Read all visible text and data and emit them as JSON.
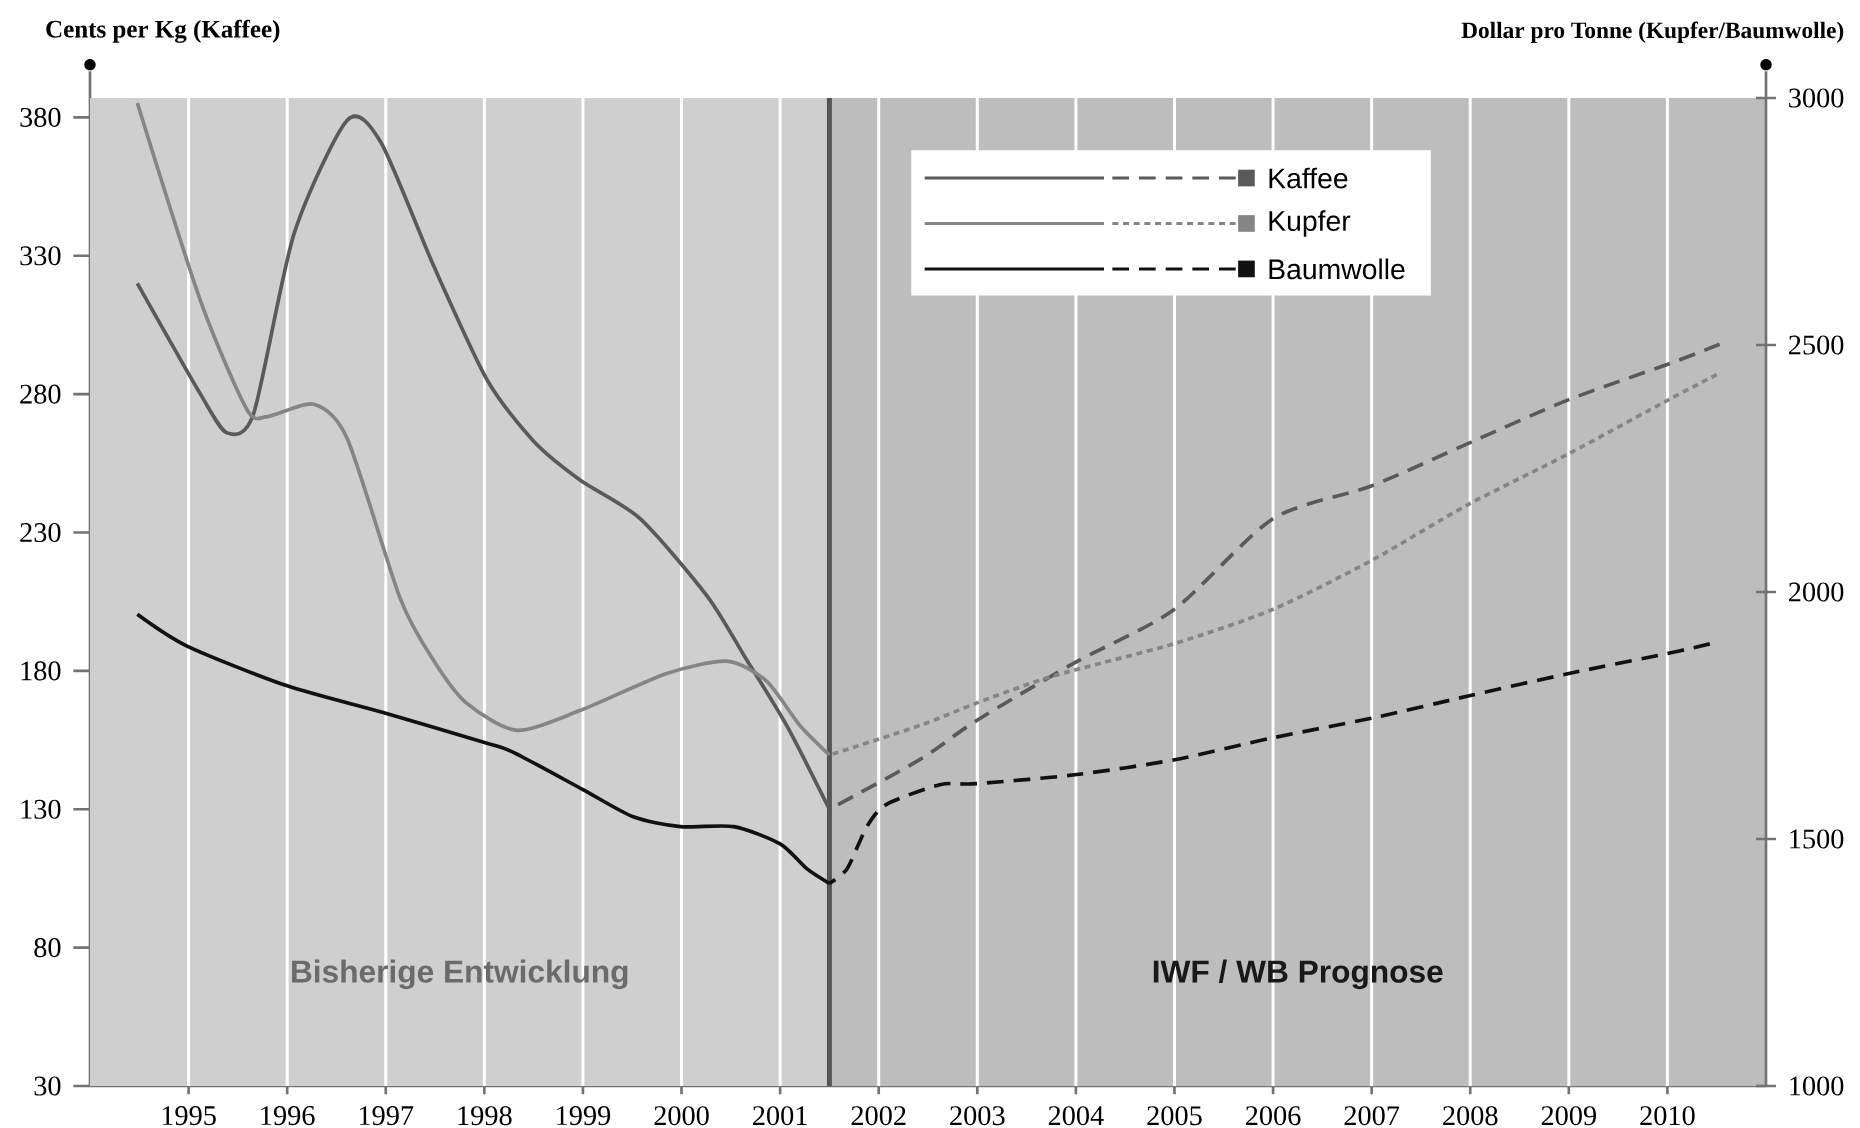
{
  "chart_data": {
    "type": "line",
    "ylabel": "Cents per Kg (Kaffee)",
    "y2label": "Dollar pro Tonne (Kupfer/Baumwolle)",
    "xlim": [
      1994,
      2011
    ],
    "xticks": [
      1995,
      1996,
      1997,
      1998,
      1999,
      2000,
      2001,
      2002,
      2003,
      2004,
      2005,
      2006,
      2007,
      2008,
      2009,
      2010
    ],
    "ylim": [
      30,
      387
    ],
    "yticks": [
      30,
      80,
      130,
      180,
      230,
      280,
      330,
      380
    ],
    "y2lim": [
      1000,
      3000
    ],
    "y2ticks": [
      1000,
      1500,
      2000,
      2500,
      3000
    ],
    "grid": "x",
    "legend": "top",
    "series": [
      {
        "name": "Kaffee",
        "color": "#5a5a5a",
        "line_style": "solid",
        "x": [
          1994.48,
          1995.12,
          1995.39,
          1995.66,
          1996.07,
          1996.61,
          1996.95,
          1997.49,
          1998.03,
          1998.5,
          1998.97,
          1999.58,
          2000.26,
          2000.66,
          2001.07,
          2001.5
        ],
        "values": [
          320,
          280,
          266,
          273,
          338,
          379,
          371,
          326,
          285,
          263,
          249,
          235,
          207,
          184,
          160,
          130
        ]
      },
      {
        "color": "#5a5a5a",
        "line_style": "dashed",
        "x": [
          2001.5,
          2002.42,
          2002.99,
          2003.99,
          2004.99,
          2006.0,
          2007.01,
          2008.03,
          2009.0,
          2010.02,
          2010.53
        ],
        "values": [
          130,
          148,
          162,
          183,
          202,
          235,
          247,
          263,
          278,
          291,
          298
        ]
      },
      {
        "name": "Kupfer",
        "color": "#858585",
        "line_style": "solid",
        "axis": "y2",
        "x": [
          1994.48,
          1995.12,
          1995.59,
          1995.8,
          1996.27,
          1996.61,
          1997.15,
          1997.49,
          1997.82,
          1998.33,
          1998.97,
          1999.85,
          2000.46,
          2000.86,
          2001.2,
          2001.5
        ],
        "values": [
          2990,
          2590,
          2370,
          2355,
          2380,
          2310,
          1985,
          1860,
          1775,
          1720,
          1760,
          1835,
          1860,
          1820,
          1730,
          1670
        ]
      },
      {
        "color": "#858585",
        "line_style": "dotted",
        "axis": "y2",
        "x": [
          2001.5,
          2002.42,
          2002.99,
          2003.77,
          2004.99,
          2006.0,
          2007.01,
          2007.96,
          2009.0,
          2010.02,
          2010.5
        ],
        "values": [
          1670,
          1730,
          1775,
          1830,
          1895,
          1965,
          2065,
          2175,
          2280,
          2390,
          2440
        ]
      },
      {
        "name": "Baumwolle",
        "color": "#111111",
        "line_style": "solid",
        "axis": "y2",
        "x": [
          1994.48,
          1994.99,
          1996.0,
          1996.99,
          1998.01,
          1998.3,
          1999.0,
          1999.51,
          1999.99,
          2000.53,
          2001.0,
          2001.27,
          2001.5
        ],
        "values": [
          1955,
          1890,
          1810,
          1755,
          1695,
          1675,
          1600,
          1545,
          1525,
          1525,
          1490,
          1440,
          1410
        ]
      },
      {
        "color": "#111111",
        "line_style": "dashed",
        "axis": "y2",
        "x": [
          2001.5,
          2001.68,
          2001.88,
          2002.08,
          2002.62,
          2002.99,
          2003.99,
          2004.99,
          2006.0,
          2007.01,
          2007.99,
          2009.0,
          2009.99,
          2010.43
        ],
        "values": [
          1410,
          1440,
          1525,
          1570,
          1610,
          1612,
          1630,
          1660,
          1705,
          1745,
          1790,
          1835,
          1875,
          1895
        ]
      }
    ],
    "bands": [
      {
        "axis": "x",
        "from": 1994,
        "to": 2001.5,
        "label": "Bisherige Entwicklung",
        "color": "#cfcfcf"
      },
      {
        "axis": "x",
        "from": 2001.5,
        "to": 2011,
        "label": "IWF / WB Prognose",
        "color": "#bdbdbd"
      }
    ],
    "ref_lines": [
      {
        "axis": "x",
        "value": 2001.5,
        "color": "#555555",
        "line_style": "solid"
      }
    ]
  }
}
